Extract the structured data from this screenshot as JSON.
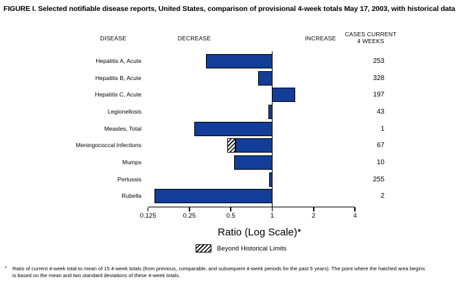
{
  "title": "FIGURE I. Selected notifiable disease reports, United States, comparison of provisional 4-week totals May 17, 2003, with historical data",
  "headers": {
    "disease": "DISEASE",
    "decrease": "DECREASE",
    "increase": "INCREASE",
    "cases": "CASES CURRENT\n4 WEEKS"
  },
  "legend": {
    "swatch_icon": "hatched-pattern-swatch",
    "label": "Beyond Historical Limits"
  },
  "footnote": {
    "marker": "*",
    "text": "Ratio of current 4-week total to mean of 15 4-week totals (from previous, comparable, and subsequent 4-week periods for the past 5 years). The point where the hatched area begins\nis based on the mean and two standard deviations of these 4-week totals."
  },
  "colors": {
    "bar_fill": "#123e99",
    "outline": "#000000",
    "background": "#ffffff"
  },
  "chart_data": {
    "type": "bar",
    "orientation": "horizontal",
    "xlabel": "Ratio (Log Scale)*",
    "x_scale": "log2",
    "xlim": [
      0.125,
      4
    ],
    "baseline_ratio": 1,
    "grid": false,
    "ticks": [
      {
        "label": "0.125",
        "value": 0.125
      },
      {
        "label": "0.25",
        "value": 0.25
      },
      {
        "label": "0.5",
        "value": 0.5
      },
      {
        "label": "1",
        "value": 1
      },
      {
        "label": "2",
        "value": 2
      },
      {
        "label": "4",
        "value": 4
      }
    ],
    "rows": [
      {
        "disease": "Hepatitis A, Acute",
        "ratio": 0.33,
        "cases": "253"
      },
      {
        "disease": "Hepatitis B, Acute",
        "ratio": 0.79,
        "cases": "328"
      },
      {
        "disease": "Hepatitis C, Acute",
        "ratio": 1.46,
        "cases": "197"
      },
      {
        "disease": "Legionellosis",
        "ratio": 0.94,
        "cases": "43"
      },
      {
        "disease": "Measles, Total",
        "ratio": 0.27,
        "cases": "1"
      },
      {
        "disease": "Meningococcal Infections",
        "ratio": 0.47,
        "cases": "67",
        "beyond_historical_limits": true,
        "hatch_end_ratio": 0.54
      },
      {
        "disease": "Mumps",
        "ratio": 0.53,
        "cases": "10"
      },
      {
        "disease": "Pertussis",
        "ratio": 0.95,
        "cases": "255"
      },
      {
        "disease": "Rubella",
        "ratio": 0.14,
        "cases": "2"
      }
    ]
  }
}
